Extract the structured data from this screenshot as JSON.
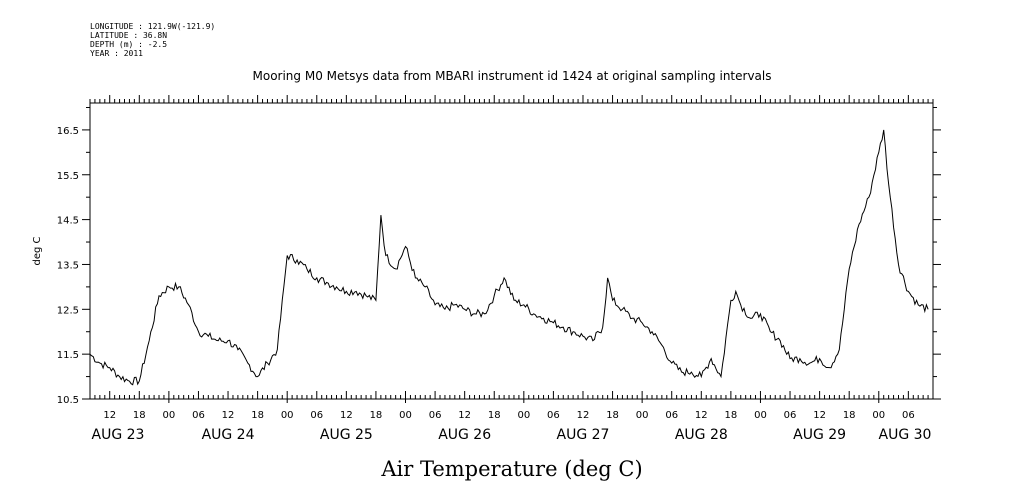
{
  "meta": {
    "longitude": "LONGITUDE : 121.9W(-121.9)",
    "latitude": "LATITUDE : 36.8N",
    "depth": "DEPTH (m) : -2.5",
    "year": "YEAR : 2011"
  },
  "chart_data": {
    "type": "line",
    "title": "Mooring M0 Metsys data from MBARI instrument id 1424 at original sampling intervals",
    "ylabel": "deg C",
    "xlabel": "Air Temperature (deg C)",
    "ylim": [
      10.5,
      17.1
    ],
    "xlim": [
      "2011-08-23T08:00",
      "2011-08-30T11:00"
    ],
    "y_ticks": [
      "10.5",
      "11.5",
      "12.5",
      "13.5",
      "14.5",
      "15.5",
      "16.5"
    ],
    "hour_tick_labels": [
      "12",
      "18",
      "00",
      "06",
      "12",
      "18",
      "00",
      "06",
      "12",
      "18",
      "00",
      "06",
      "12",
      "18",
      "00",
      "06",
      "12",
      "18",
      "00",
      "06",
      "12",
      "18",
      "00",
      "06",
      "12",
      "18",
      "00",
      "06"
    ],
    "day_labels": [
      "AUG 23",
      "AUG 24",
      "AUG 25",
      "AUG 26",
      "AUG 27",
      "AUG 28",
      "AUG 29",
      "AUG 30"
    ],
    "grid": false,
    "series": [
      {
        "x": [
          "2011-08-23T08:00",
          "2011-08-23T10:00",
          "2011-08-23T12:00",
          "2011-08-23T14:00",
          "2011-08-23T16:00",
          "2011-08-23T18:00",
          "2011-08-23T20:00",
          "2011-08-23T22:00",
          "2011-08-24T00:00",
          "2011-08-24T02:00",
          "2011-08-24T04:00",
          "2011-08-24T06:00",
          "2011-08-24T08:00",
          "2011-08-24T10:00",
          "2011-08-24T12:00",
          "2011-08-24T14:00",
          "2011-08-24T16:00",
          "2011-08-24T18:00",
          "2011-08-24T20:00",
          "2011-08-24T22:00",
          "2011-08-25T00:00",
          "2011-08-25T02:00",
          "2011-08-25T04:00",
          "2011-08-25T06:00",
          "2011-08-25T08:00",
          "2011-08-25T10:00",
          "2011-08-25T12:00",
          "2011-08-25T14:00",
          "2011-08-25T16:00",
          "2011-08-25T18:00",
          "2011-08-25T19:00",
          "2011-08-25T20:00",
          "2011-08-25T22:00",
          "2011-08-26T00:00",
          "2011-08-26T02:00",
          "2011-08-26T04:00",
          "2011-08-26T06:00",
          "2011-08-26T08:00",
          "2011-08-26T10:00",
          "2011-08-26T12:00",
          "2011-08-26T14:00",
          "2011-08-26T16:00",
          "2011-08-26T18:00",
          "2011-08-26T20:00",
          "2011-08-26T22:00",
          "2011-08-27T00:00",
          "2011-08-27T02:00",
          "2011-08-27T04:00",
          "2011-08-27T06:00",
          "2011-08-27T08:00",
          "2011-08-27T10:00",
          "2011-08-27T12:00",
          "2011-08-27T14:00",
          "2011-08-27T16:00",
          "2011-08-27T17:00",
          "2011-08-27T18:00",
          "2011-08-27T20:00",
          "2011-08-27T22:00",
          "2011-08-28T00:00",
          "2011-08-28T02:00",
          "2011-08-28T04:00",
          "2011-08-28T06:00",
          "2011-08-28T08:00",
          "2011-08-28T10:00",
          "2011-08-28T12:00",
          "2011-08-28T14:00",
          "2011-08-28T16:00",
          "2011-08-28T18:00",
          "2011-08-28T19:00",
          "2011-08-28T20:00",
          "2011-08-28T22:00",
          "2011-08-29T00:00",
          "2011-08-29T02:00",
          "2011-08-29T04:00",
          "2011-08-29T06:00",
          "2011-08-29T08:00",
          "2011-08-29T10:00",
          "2011-08-29T12:00",
          "2011-08-29T14:00",
          "2011-08-29T16:00",
          "2011-08-29T18:00",
          "2011-08-29T20:00",
          "2011-08-29T22:00",
          "2011-08-30T00:00",
          "2011-08-30T01:00",
          "2011-08-30T02:00",
          "2011-08-30T04:00",
          "2011-08-30T06:00",
          "2011-08-30T08:00",
          "2011-08-30T10:00"
        ],
        "y": [
          11.5,
          11.3,
          11.2,
          11.0,
          10.9,
          10.9,
          11.8,
          12.8,
          13.0,
          13.0,
          12.6,
          12.0,
          11.9,
          11.8,
          11.8,
          11.6,
          11.3,
          11.0,
          11.3,
          11.6,
          13.7,
          13.6,
          13.4,
          13.2,
          13.1,
          13.0,
          12.9,
          12.9,
          12.8,
          12.7,
          14.6,
          13.7,
          13.4,
          13.9,
          13.2,
          13.0,
          12.6,
          12.5,
          12.6,
          12.5,
          12.4,
          12.4,
          12.8,
          13.2,
          12.7,
          12.6,
          12.4,
          12.3,
          12.2,
          12.1,
          12.0,
          11.9,
          11.8,
          12.1,
          13.2,
          12.7,
          12.5,
          12.3,
          12.2,
          12.0,
          11.7,
          11.3,
          11.1,
          11.1,
          11.0,
          11.4,
          11.0,
          12.7,
          12.9,
          12.6,
          12.3,
          12.4,
          12.0,
          11.8,
          11.4,
          11.4,
          11.3,
          11.4,
          11.2,
          11.6,
          13.4,
          14.4,
          15.0,
          16.0,
          16.5,
          15.3,
          13.5,
          12.9,
          12.6,
          12.5
        ]
      }
    ]
  }
}
